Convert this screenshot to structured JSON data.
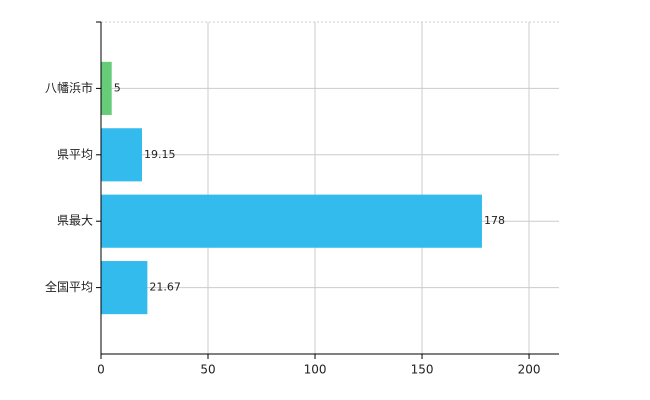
{
  "chart_data": {
    "type": "barh",
    "categories": [
      "八幡浜市",
      "県平均",
      "県最大",
      "全国平均"
    ],
    "values": [
      5,
      19.15,
      178,
      21.67
    ],
    "colors": [
      "#66cc77",
      "#33bbee",
      "#33bbee",
      "#33bbee"
    ],
    "xlim": [
      0,
      214
    ],
    "xticks": [
      0,
      50,
      100,
      150,
      200
    ],
    "grid": true
  }
}
